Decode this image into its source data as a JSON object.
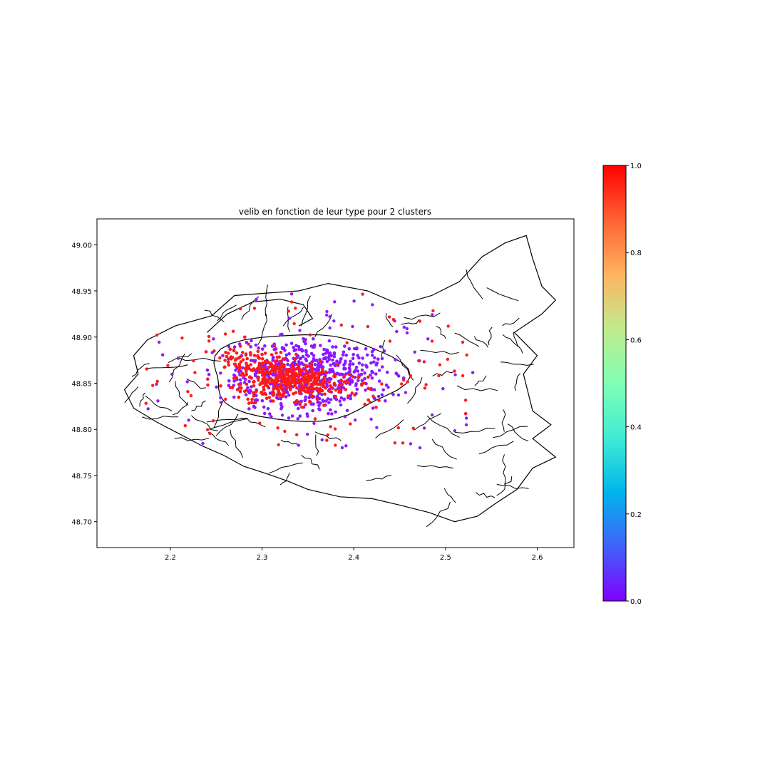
{
  "chart_data": {
    "type": "scatter",
    "title": "velib en fonction de leur type pour 2 clusters",
    "xlim": [
      2.12,
      2.64
    ],
    "ylim": [
      48.672,
      49.028
    ],
    "xticks": [
      2.2,
      2.3,
      2.4,
      2.5,
      2.6
    ],
    "xtick_labels": [
      "2.2",
      "2.3",
      "2.4",
      "2.5",
      "2.6"
    ],
    "yticks": [
      48.7,
      48.75,
      48.8,
      48.85,
      48.9,
      48.95,
      49.0
    ],
    "ytick_labels": [
      "48.70",
      "48.75",
      "48.80",
      "48.85",
      "48.90",
      "48.95",
      "49.00"
    ],
    "colormap": "rainbow",
    "colorbar": {
      "range": [
        0.0,
        1.0
      ],
      "ticks": [
        0.0,
        0.2,
        0.4,
        0.6,
        0.8,
        1.0
      ],
      "tick_labels": [
        "0.0",
        "0.2",
        "0.4",
        "0.6",
        "0.8",
        "1.0"
      ],
      "colors": [
        "#8000ff",
        "#4062fa",
        "#00b5eb",
        "#40ecd4",
        "#80ffb4",
        "#c0eb8d",
        "#ffb360",
        "#ff6232",
        "#ff0000"
      ]
    },
    "clusters": [
      {
        "label": 0,
        "color": "#8b1aff"
      },
      {
        "label": 1,
        "color": "#ff1a1a"
      }
    ],
    "grid": false,
    "legend": "none",
    "basemap": "communes"
  }
}
